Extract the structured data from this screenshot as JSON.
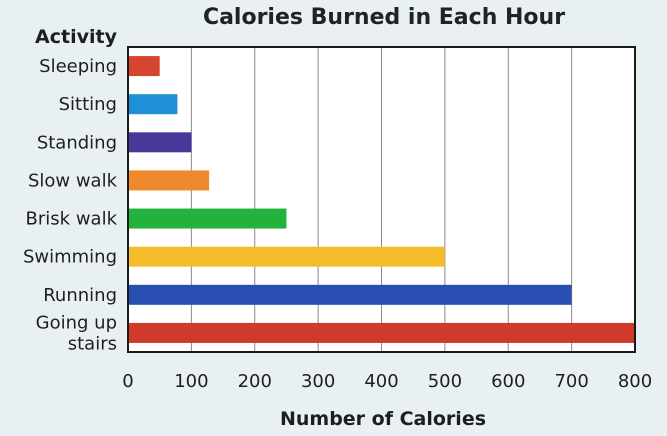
{
  "chart_data": {
    "type": "bar",
    "orientation": "horizontal",
    "title": "Calories Burned in Each Hour",
    "ylabel": "Activity",
    "xlabel": "Number of Calories",
    "xlim": [
      0,
      800
    ],
    "xticks": [
      "0",
      "100",
      "200",
      "300",
      "400",
      "500",
      "600",
      "700",
      "800"
    ],
    "grid": true,
    "categories": [
      {
        "label_lines": [
          "Sleeping"
        ],
        "value": 50,
        "color": "#d8452f"
      },
      {
        "label_lines": [
          "Sitting"
        ],
        "value": 78,
        "color": "#1f8fd8"
      },
      {
        "label_lines": [
          "Standing"
        ],
        "value": 100,
        "color": "#46399a"
      },
      {
        "label_lines": [
          "Slow walk"
        ],
        "value": 128,
        "color": "#f0892c"
      },
      {
        "label_lines": [
          "Brisk walk"
        ],
        "value": 250,
        "color": "#23b33c"
      },
      {
        "label_lines": [
          "Swimming"
        ],
        "value": 500,
        "color": "#f5bc2a"
      },
      {
        "label_lines": [
          "Running"
        ],
        "value": 700,
        "color": "#2a4fb3"
      },
      {
        "label_lines": [
          "Going up",
          "stairs"
        ],
        "value": 800,
        "color": "#d03a2b"
      }
    ]
  }
}
